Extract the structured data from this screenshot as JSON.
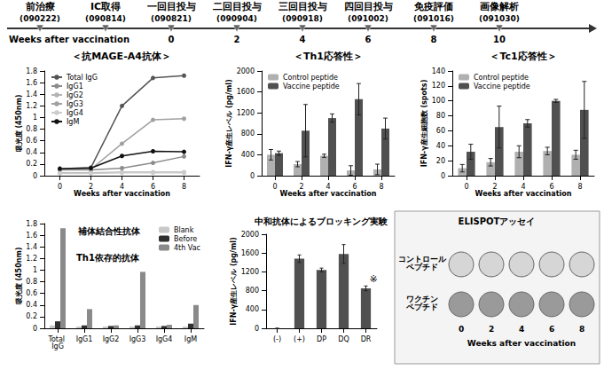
{
  "timeline": {
    "events": [
      {
        "label": "前治療",
        "date": "(090222)",
        "week": null
      },
      {
        "label": "IC取得",
        "date": "(090814)",
        "week": null
      },
      {
        "label": "一回目投与",
        "date": "(090821)",
        "week": 0
      },
      {
        "label": "二回目投与",
        "date": "(090904)",
        "week": 2
      },
      {
        "label": "三回目投与",
        "date": "(090918)",
        "week": 4
      },
      {
        "label": "四回目投与",
        "date": "(091002)",
        "week": 6
      },
      {
        "label": "免疫評価",
        "date": "(091016)",
        "week": 8
      },
      {
        "label": "画像解析",
        "date": "(091030)",
        "week": 10
      }
    ],
    "axis_label": "Weeks after vaccination"
  },
  "chart_data": [
    {
      "type": "line",
      "title": "＜抗MAGE-A4抗体＞",
      "xlabel": "Weeks after vaccination",
      "ylabel": "吸光度 (450nm)",
      "categories": [
        0,
        2,
        4,
        6,
        8
      ],
      "ylim": [
        0,
        1.8
      ],
      "yticks": [
        0,
        0.2,
        0.4,
        0.6,
        0.8,
        1,
        1.2,
        1.4,
        1.6,
        1.8
      ],
      "grid": false,
      "legend": "upper left",
      "series": [
        {
          "name": "Total IgG",
          "color": "#555555",
          "marker": "circle",
          "values": [
            0.12,
            0.14,
            1.2,
            1.68,
            1.72
          ]
        },
        {
          "name": "IgG1",
          "color": "#8c8c8c",
          "marker": "circle",
          "values": [
            0.1,
            0.1,
            0.13,
            0.22,
            0.33
          ]
        },
        {
          "name": "IgG2",
          "color": "#b4b4b4",
          "marker": "circle",
          "values": [
            0.05,
            0.05,
            0.06,
            0.06,
            0.06
          ]
        },
        {
          "name": "IgG3",
          "color": "#a0a0a0",
          "marker": "circle",
          "values": [
            0.1,
            0.11,
            0.55,
            0.96,
            0.98
          ]
        },
        {
          "name": "IgG4",
          "color": "#cccccc",
          "marker": "circle",
          "values": [
            0.04,
            0.04,
            0.05,
            0.05,
            0.05
          ]
        },
        {
          "name": "IgM",
          "color": "#111111",
          "marker": "circle",
          "values": [
            0.12,
            0.13,
            0.34,
            0.42,
            0.41
          ]
        }
      ]
    },
    {
      "type": "bar",
      "title": "＜Th1応答性＞",
      "xlabel": "Weeks after vaccination",
      "ylabel": "IFN-γ産生レベル (pg/ml)",
      "categories": [
        0,
        2,
        4,
        6,
        8
      ],
      "ylim": [
        0,
        2000
      ],
      "yticks": [
        0,
        400,
        800,
        1200,
        1600,
        2000
      ],
      "grid": false,
      "legend": "upper left",
      "series": [
        {
          "name": "Control peptide",
          "color": "#b0b0b0",
          "values": [
            400,
            220,
            380,
            100,
            120
          ],
          "errors": [
            100,
            50,
            30,
            90,
            100
          ]
        },
        {
          "name": "Vaccine peptide",
          "color": "#505050",
          "values": [
            430,
            860,
            1100,
            1460,
            900
          ],
          "errors": [
            40,
            500,
            80,
            300,
            200
          ]
        }
      ]
    },
    {
      "type": "bar",
      "title": "＜Tc1応答性＞",
      "xlabel": "Weeks after vaccination",
      "ylabel": "IFN-γ産生細胞数 (spots)",
      "categories": [
        0,
        2,
        4,
        6,
        8
      ],
      "ylim": [
        0,
        140
      ],
      "yticks": [
        0,
        20,
        40,
        60,
        80,
        100,
        120,
        140
      ],
      "grid": false,
      "legend": "upper left",
      "series": [
        {
          "name": "Control peptide",
          "color": "#b0b0b0",
          "values": [
            10,
            18,
            32,
            33,
            28
          ],
          "errors": [
            5,
            5,
            8,
            5,
            6
          ]
        },
        {
          "name": "Vaccine peptide",
          "color": "#505050",
          "values": [
            32,
            65,
            70,
            100,
            88
          ],
          "errors": [
            10,
            28,
            5,
            2,
            38
          ]
        }
      ]
    },
    {
      "type": "bar",
      "ylabel": "吸光度 (450nm)",
      "categories": [
        "Total IgG",
        "IgG1",
        "IgG2",
        "IgG3",
        "IgG4",
        "IgM"
      ],
      "ylim": [
        0,
        1.8
      ],
      "yticks": [
        0,
        0.2,
        0.4,
        0.6,
        0.8,
        1,
        1.2,
        1.4,
        1.6,
        1.8
      ],
      "grid": false,
      "legend": "upper right",
      "annotations": [
        {
          "text": "補体結合性抗体"
        },
        {
          "text": "Th1依存的抗体"
        }
      ],
      "series": [
        {
          "name": "Blank",
          "color": "#c8c8c8",
          "values": [
            0.05,
            0.03,
            0.03,
            0.03,
            0.03,
            0.03
          ]
        },
        {
          "name": "Before",
          "color": "#303030",
          "values": [
            0.12,
            0.05,
            0.04,
            0.05,
            0.04,
            0.08
          ]
        },
        {
          "name": "4th Vac",
          "color": "#8a8a8a",
          "values": [
            1.72,
            0.33,
            0.05,
            0.97,
            0.06,
            0.4
          ]
        }
      ]
    },
    {
      "type": "bar",
      "title": "中和抗体によるブロッキング実験",
      "ylabel": "IFN-γ産生レベル (pg/ml)",
      "categories": [
        "(-)",
        "(+)",
        "DP",
        "DQ",
        "DR"
      ],
      "ylim": [
        0,
        2000
      ],
      "yticks": [
        0,
        400,
        800,
        1200,
        1600,
        2000
      ],
      "grid": false,
      "color": "#505050",
      "values": [
        0,
        1480,
        1240,
        1580,
        850
      ],
      "errors": [
        0,
        80,
        40,
        200,
        50
      ],
      "annotations": [
        {
          "category": "DR",
          "text": "※"
        }
      ]
    }
  ],
  "elispot": {
    "title": "ELISPOTアッセイ",
    "rows": [
      "コントロール ペプチド",
      "ワクチン ペプチド"
    ],
    "columns": [
      0,
      2,
      4,
      6,
      8
    ],
    "xlabel": "Weeks after vaccination"
  }
}
